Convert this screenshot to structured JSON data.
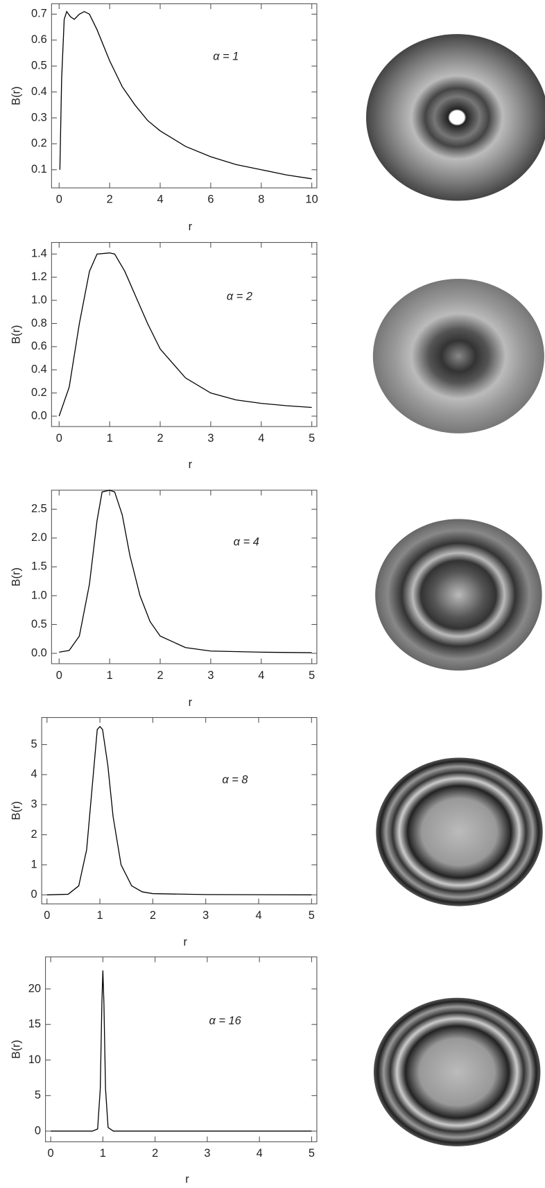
{
  "chart_data": [
    {
      "type": "line",
      "annotation": "α = 1",
      "xlabel": "r",
      "ylabel": "B(r)",
      "color": "#000000",
      "x": [
        0.03,
        0.1,
        0.2,
        0.3,
        0.45,
        0.6,
        0.8,
        1.0,
        1.2,
        1.5,
        2,
        2.5,
        3,
        3.5,
        4,
        5,
        6,
        7,
        8,
        9,
        10
      ],
      "values": [
        0.1,
        0.45,
        0.68,
        0.71,
        0.69,
        0.68,
        0.7,
        0.71,
        0.7,
        0.64,
        0.52,
        0.42,
        0.35,
        0.29,
        0.25,
        0.19,
        0.15,
        0.12,
        0.1,
        0.08,
        0.065
      ],
      "xlim": [
        -0.3,
        10.2
      ],
      "ylim": [
        0.03,
        0.74
      ],
      "xticks": [
        0,
        2,
        4,
        6,
        8,
        10
      ],
      "yticks": [
        0.1,
        0.2,
        0.3,
        0.4,
        0.5,
        0.6,
        0.7
      ]
    },
    {
      "type": "line",
      "annotation": "α = 2",
      "xlabel": "r",
      "ylabel": "B(r)",
      "color": "#000000",
      "x": [
        0,
        0.2,
        0.4,
        0.6,
        0.75,
        1.0,
        1.1,
        1.3,
        1.5,
        1.75,
        2,
        2.5,
        3,
        3.5,
        4,
        4.5,
        5
      ],
      "values": [
        0.0,
        0.25,
        0.8,
        1.25,
        1.4,
        1.41,
        1.4,
        1.25,
        1.05,
        0.8,
        0.58,
        0.33,
        0.2,
        0.14,
        0.11,
        0.09,
        0.075
      ],
      "xlim": [
        -0.15,
        5.1
      ],
      "ylim": [
        -0.09,
        1.5
      ],
      "xticks": [
        0,
        1,
        2,
        3,
        4,
        5
      ],
      "yticks": [
        {
          "value": 0,
          "label": "0.0"
        },
        0.2,
        0.4,
        0.6,
        0.8,
        {
          "value": 1,
          "label": "1.0"
        },
        1.2,
        1.4
      ]
    },
    {
      "type": "line",
      "annotation": "α = 4",
      "xlabel": "r",
      "ylabel": "B(r)",
      "color": "#000000",
      "x": [
        0,
        0.2,
        0.4,
        0.6,
        0.75,
        0.85,
        1.0,
        1.1,
        1.25,
        1.4,
        1.6,
        1.8,
        2,
        2.5,
        3,
        4,
        5
      ],
      "values": [
        0.02,
        0.05,
        0.3,
        1.2,
        2.3,
        2.8,
        2.83,
        2.8,
        2.4,
        1.7,
        1.0,
        0.55,
        0.3,
        0.1,
        0.04,
        0.02,
        0.01
      ],
      "xlim": [
        -0.15,
        5.1
      ],
      "ylim": [
        -0.18,
        2.83
      ],
      "xticks": [
        0,
        1,
        2,
        3,
        4,
        5
      ],
      "yticks": [
        {
          "value": 0,
          "label": "0.0"
        },
        0.5,
        {
          "value": 1,
          "label": "1.0"
        },
        1.5,
        {
          "value": 2,
          "label": "2.0"
        },
        2.5
      ]
    },
    {
      "type": "line",
      "annotation": "α = 8",
      "xlabel": "r",
      "ylabel": "B(r)",
      "color": "#000000",
      "x": [
        0,
        0.4,
        0.6,
        0.75,
        0.85,
        0.95,
        1.0,
        1.05,
        1.15,
        1.25,
        1.4,
        1.6,
        1.8,
        2,
        3,
        5
      ],
      "values": [
        0,
        0.02,
        0.3,
        1.5,
        3.5,
        5.5,
        5.6,
        5.5,
        4.3,
        2.6,
        1.0,
        0.3,
        0.1,
        0.04,
        0.01,
        0
      ],
      "xlim": [
        -0.1,
        5.1
      ],
      "ylim": [
        -0.3,
        5.9
      ],
      "xticks": [
        0,
        1,
        2,
        3,
        4,
        5
      ],
      "yticks": [
        0,
        1,
        2,
        3,
        4,
        5
      ]
    },
    {
      "type": "line",
      "annotation": "α = 16",
      "xlabel": "r",
      "ylabel": "B(r)",
      "color": "#000000",
      "x": [
        0,
        0.8,
        0.9,
        0.95,
        0.98,
        1.0,
        1.02,
        1.05,
        1.1,
        1.2,
        5
      ],
      "values": [
        0,
        0,
        0.3,
        6,
        18,
        22.6,
        18,
        6,
        0.5,
        0,
        0
      ],
      "xlim": [
        -0.1,
        5.1
      ],
      "ylim": [
        -1.5,
        24.5
      ],
      "xticks": [
        0,
        1,
        2,
        3,
        4,
        5
      ],
      "yticks": [
        0,
        5,
        10,
        15,
        20
      ]
    }
  ]
}
